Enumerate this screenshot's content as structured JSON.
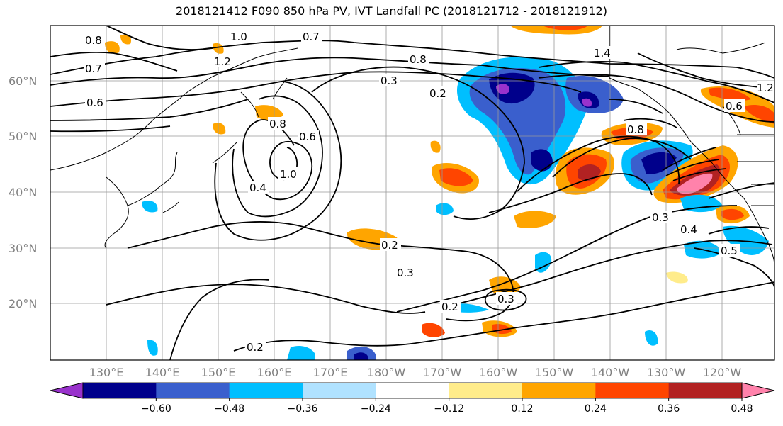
{
  "title": "2018121412 F090 850 hPa PV, IVT Landfall PC (2018121712 - 2018121912)",
  "lat_labels": [
    "60°N",
    "50°N",
    "40°N",
    "30°N",
    "20°N"
  ],
  "lon_labels": [
    "130°E",
    "140°E",
    "150°E",
    "160°E",
    "170°E",
    "180°W",
    "170°W",
    "160°W",
    "150°W",
    "140°W",
    "130°W",
    "120°W"
  ],
  "colorbar": {
    "ticks": [
      "−0.60",
      "−0.48",
      "−0.36",
      "−0.24",
      "−0.12",
      "0.12",
      "0.24",
      "0.36",
      "0.48",
      "0.60"
    ],
    "colors": [
      "#9932cc",
      "#00008b",
      "#3a5fcd",
      "#00bfff",
      "#b0e2ff",
      "#ffffff",
      "#ffec8b",
      "#ffa500",
      "#ff4500",
      "#b22222",
      "#ff82ab"
    ]
  },
  "contour_labels": [
    "0.8",
    "1.0",
    "0.7",
    "1.2",
    "0.7",
    "0.6",
    "0.8",
    "0.3",
    "0.2",
    "1.4",
    "0.8",
    "0.6",
    "1.0",
    "0.4",
    "0.3",
    "0.2",
    "0.3",
    "0.2",
    "0.2",
    "0.3",
    "0.4",
    "0.5",
    "1.2",
    "0.8",
    "0.6"
  ]
}
